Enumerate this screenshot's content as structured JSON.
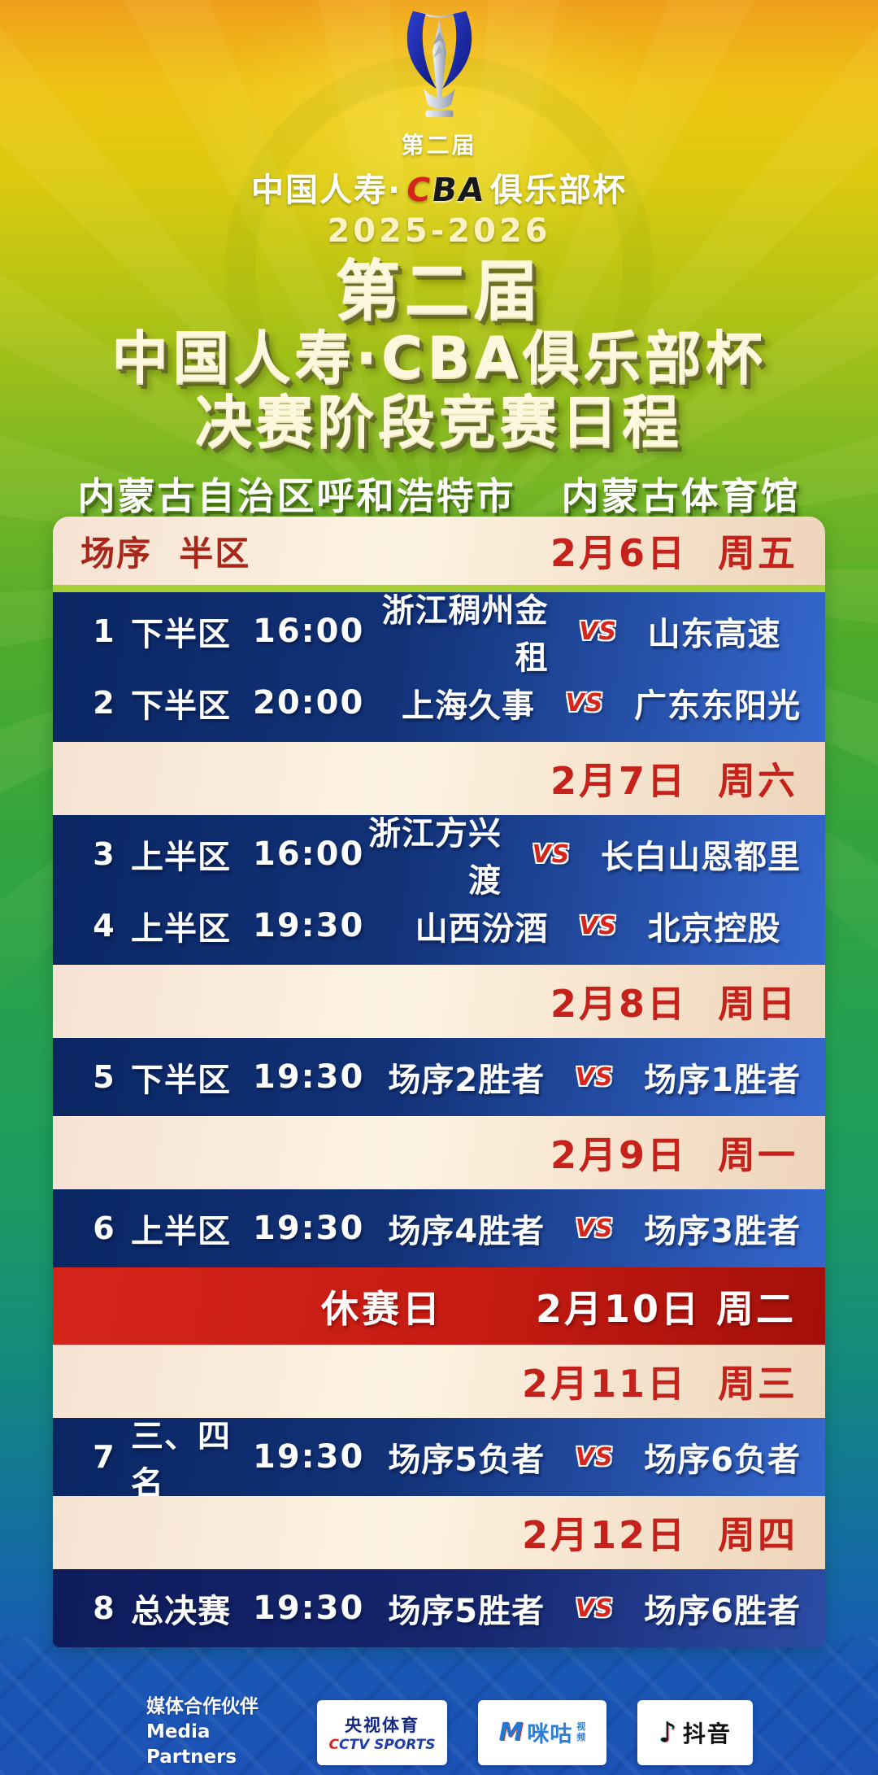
{
  "header": {
    "logo": {
      "edition": "第二届",
      "brand_prefix": "中国人寿·",
      "cba_c": "C",
      "cba_ba": "BA",
      "brand_suffix": "俱乐部杯",
      "season": "2025-2026"
    },
    "title_line1": "第二届",
    "title_line2": "中国人寿·CBA俱乐部杯",
    "title_line3": "决赛阶段竞赛日程",
    "venue_city": "内蒙古自治区呼和浩特市",
    "venue_arena": "内蒙古体育馆"
  },
  "schedule": {
    "vs_label": "VS",
    "bands": [
      {
        "type": "header",
        "left": "场序  半区",
        "date": "2月6日  周五"
      },
      {
        "type": "matches",
        "rows": [
          {
            "no": "1",
            "stage": "下半区",
            "time": "16:00",
            "home": "浙江稠州金租",
            "away": "山东高速"
          },
          {
            "no": "2",
            "stage": "下半区",
            "time": "20:00",
            "home": "上海久事",
            "away": "广东东阳光"
          }
        ]
      },
      {
        "type": "date",
        "date": "2月7日  周六"
      },
      {
        "type": "matches",
        "rows": [
          {
            "no": "3",
            "stage": "上半区",
            "time": "16:00",
            "home": "浙江方兴渡",
            "away": "长白山恩都里"
          },
          {
            "no": "4",
            "stage": "上半区",
            "time": "19:30",
            "home": "山西汾酒",
            "away": "北京控股"
          }
        ]
      },
      {
        "type": "date",
        "date": "2月8日  周日"
      },
      {
        "type": "matches",
        "rows": [
          {
            "no": "5",
            "stage": "下半区",
            "time": "19:30",
            "home": "场序2胜者",
            "away": "场序1胜者"
          }
        ]
      },
      {
        "type": "date",
        "date": "2月9日  周一"
      },
      {
        "type": "matches",
        "rows": [
          {
            "no": "6",
            "stage": "上半区",
            "time": "19:30",
            "home": "场序4胜者",
            "away": "场序3胜者"
          }
        ]
      },
      {
        "type": "rest",
        "label": "休赛日",
        "date": "2月10日 周二"
      },
      {
        "type": "date",
        "date": "2月11日  周三"
      },
      {
        "type": "matches",
        "rows": [
          {
            "no": "7",
            "stage": "三、四名",
            "time": "19:30",
            "home": "场序5负者",
            "away": "场序6负者"
          }
        ]
      },
      {
        "type": "date",
        "date": "2月12日  周四"
      },
      {
        "type": "matches",
        "dark": true,
        "rows": [
          {
            "no": "8",
            "stage": "总决赛",
            "time": "19:30",
            "home": "场序5胜者",
            "away": "场序6胜者"
          }
        ]
      }
    ]
  },
  "footer": {
    "label_cn": "媒体合作伙伴",
    "label_en": "Media Partners",
    "cctv_cn": "央视体育",
    "cctv_en_c": "C",
    "cctv_en_rest": "CTV SPORTS",
    "migu_m": "M",
    "migu_name": "咪咕",
    "migu_sub1": "视",
    "migu_sub2": "频",
    "douyin_icon": "♪",
    "douyin_name": "抖音"
  },
  "colors": {
    "cba_red": "#d6251c",
    "title_cream": "#fdf7dd",
    "header_red": "#a8271a",
    "date_red": "#c4221a",
    "table_divider_green": "#a8cf36",
    "blue_band_dark": "#0a2663",
    "blue_band_light": "#3568ce",
    "red_band": "#c51b12",
    "cream_band": "#fdf3e2"
  }
}
